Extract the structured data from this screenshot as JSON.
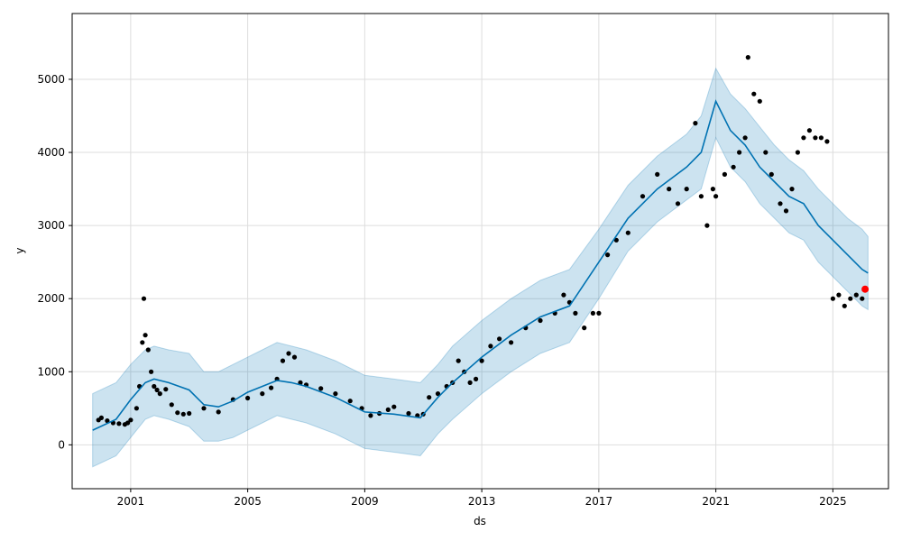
{
  "chart_data": {
    "type": "scatter",
    "xlabel": "ds",
    "ylabel": "y",
    "xlim": [
      1999.0,
      2026.9
    ],
    "ylim": [
      -600,
      5900
    ],
    "x_ticks": [
      2001,
      2005,
      2009,
      2013,
      2017,
      2021,
      2025
    ],
    "x_tick_labels": [
      "2001",
      "2005",
      "2009",
      "2013",
      "2017",
      "2021",
      "2025"
    ],
    "y_ticks": [
      0,
      1000,
      2000,
      3000,
      4000,
      5000
    ],
    "y_tick_labels": [
      "0",
      "1000",
      "2000",
      "3000",
      "4000",
      "5000"
    ],
    "grid": true,
    "colors": {
      "observed": "#000000",
      "forecast_line": "#0072B2",
      "uncertainty_band": "#0072B2",
      "last_point": "#ff0000"
    },
    "series": [
      {
        "kind": "observed",
        "x": [
          1999.9,
          2000.0,
          2000.2,
          2000.4,
          2000.6,
          2000.8,
          2000.9,
          2001.0,
          2001.2,
          2001.3,
          2001.4,
          2001.45,
          2001.5,
          2001.6,
          2001.7,
          2001.8,
          2001.9,
          2002.0,
          2002.2,
          2002.4,
          2002.6,
          2002.8,
          2003.0,
          2003.5,
          2004.0,
          2004.5,
          2005.0,
          2005.5,
          2005.8,
          2006.0,
          2006.2,
          2006.4,
          2006.6,
          2006.8,
          2007.0,
          2007.5,
          2008.0,
          2008.5,
          2008.9,
          2009.2,
          2009.5,
          2009.8,
          2010.0,
          2010.5,
          2010.8,
          2011.0,
          2011.2,
          2011.5,
          2011.8,
          2012.0,
          2012.2,
          2012.4,
          2012.6,
          2012.8,
          2013.0,
          2013.3,
          2013.6,
          2014.0,
          2014.5,
          2015.0,
          2015.5,
          2015.8,
          2016.0,
          2016.2,
          2016.5,
          2016.8,
          2017.0,
          2017.3,
          2017.6,
          2018.0,
          2018.5,
          2019.0,
          2019.4,
          2019.7,
          2020.0,
          2020.3,
          2020.5,
          2020.7,
          2020.9,
          2021.0,
          2021.3,
          2021.6,
          2021.8,
          2022.0,
          2022.1,
          2022.3,
          2022.5,
          2022.7,
          2022.9,
          2023.2,
          2023.4,
          2023.6,
          2023.8,
          2024.0,
          2024.2,
          2024.4,
          2024.6,
          2024.8,
          2025.0,
          2025.2,
          2025.4,
          2025.6,
          2025.8,
          2026.0,
          2026.1
        ],
        "y": [
          340,
          370,
          330,
          300,
          290,
          280,
          300,
          340,
          500,
          800,
          1400,
          2000,
          1500,
          1300,
          1000,
          800,
          750,
          700,
          760,
          550,
          440,
          420,
          430,
          500,
          450,
          620,
          640,
          700,
          780,
          900,
          1150,
          1250,
          1200,
          850,
          820,
          770,
          700,
          600,
          500,
          400,
          430,
          480,
          520,
          430,
          400,
          420,
          650,
          700,
          800,
          850,
          1150,
          1000,
          850,
          900,
          1150,
          1350,
          1450,
          1400,
          1600,
          1700,
          1800,
          2050,
          1950,
          1800,
          1600,
          1800,
          1800,
          2600,
          2800,
          2900,
          3400,
          3700,
          3500,
          3300,
          3500,
          4400,
          3400,
          3000,
          3500,
          3400,
          3700,
          3800,
          4000,
          4200,
          5300,
          4800,
          4700,
          4000,
          3700,
          3300,
          3200,
          3500,
          4000,
          4200,
          4300,
          4200,
          4200,
          4150,
          2000,
          2050,
          1900,
          2000,
          2050,
          2000,
          2130
        ]
      },
      {
        "kind": "forecast",
        "x": [
          1999.7,
          2000.5,
          2001.0,
          2001.5,
          2001.8,
          2002.3,
          2003.0,
          2003.5,
          2004.0,
          2004.5,
          2005.0,
          2005.5,
          2006.0,
          2006.5,
          2007.0,
          2008.0,
          2009.0,
          2010.0,
          2010.9,
          2011.5,
          2012.0,
          2013.0,
          2014.0,
          2015.0,
          2016.0,
          2017.0,
          2018.0,
          2019.0,
          2020.0,
          2020.5,
          2021.0,
          2021.5,
          2022.0,
          2022.5,
          2023.0,
          2023.5,
          2024.0,
          2024.5,
          2025.0,
          2025.5,
          2026.0,
          2026.2
        ],
        "y": [
          200,
          350,
          620,
          850,
          900,
          850,
          750,
          550,
          520,
          600,
          720,
          800,
          880,
          850,
          800,
          650,
          450,
          420,
          370,
          650,
          850,
          1200,
          1500,
          1750,
          1900,
          2500,
          3100,
          3500,
          3800,
          4000,
          4700,
          4300,
          4100,
          3800,
          3600,
          3400,
          3300,
          3000,
          2800,
          2600,
          2400,
          2350
        ]
      },
      {
        "kind": "forecast_upper",
        "x": [
          1999.7,
          2000.5,
          2001.0,
          2001.5,
          2001.8,
          2002.3,
          2003.0,
          2003.5,
          2004.0,
          2004.5,
          2005.0,
          2005.5,
          2006.0,
          2006.5,
          2007.0,
          2008.0,
          2009.0,
          2010.0,
          2010.9,
          2011.5,
          2012.0,
          2013.0,
          2014.0,
          2015.0,
          2016.0,
          2017.0,
          2018.0,
          2019.0,
          2020.0,
          2020.5,
          2021.0,
          2021.5,
          2022.0,
          2022.5,
          2023.0,
          2023.5,
          2024.0,
          2024.5,
          2025.0,
          2025.5,
          2026.0,
          2026.2
        ],
        "y": [
          700,
          850,
          1100,
          1300,
          1350,
          1300,
          1250,
          1000,
          1000,
          1100,
          1200,
          1300,
          1400,
          1350,
          1300,
          1150,
          950,
          900,
          850,
          1100,
          1350,
          1700,
          2000,
          2250,
          2400,
          2950,
          3550,
          3950,
          4250,
          4500,
          5150,
          4800,
          4600,
          4350,
          4100,
          3900,
          3750,
          3500,
          3300,
          3100,
          2950,
          2850
        ]
      },
      {
        "kind": "forecast_lower",
        "x": [
          1999.7,
          2000.5,
          2001.0,
          2001.5,
          2001.8,
          2002.3,
          2003.0,
          2003.5,
          2004.0,
          2004.5,
          2005.0,
          2005.5,
          2006.0,
          2006.5,
          2007.0,
          2008.0,
          2009.0,
          2010.0,
          2010.9,
          2011.5,
          2012.0,
          2013.0,
          2014.0,
          2015.0,
          2016.0,
          2017.0,
          2018.0,
          2019.0,
          2020.0,
          2020.5,
          2021.0,
          2021.5,
          2022.0,
          2022.5,
          2023.0,
          2023.5,
          2024.0,
          2024.5,
          2025.0,
          2025.5,
          2026.0,
          2026.2
        ],
        "y": [
          -300,
          -150,
          100,
          350,
          400,
          350,
          250,
          50,
          50,
          100,
          200,
          300,
          400,
          350,
          300,
          150,
          -50,
          -100,
          -150,
          150,
          350,
          700,
          1000,
          1250,
          1400,
          2000,
          2650,
          3050,
          3350,
          3500,
          4200,
          3800,
          3600,
          3300,
          3100,
          2900,
          2800,
          2500,
          2300,
          2100,
          1900,
          1850
        ]
      },
      {
        "kind": "last_point",
        "x": [
          2026.1
        ],
        "y": [
          2130
        ]
      }
    ]
  }
}
